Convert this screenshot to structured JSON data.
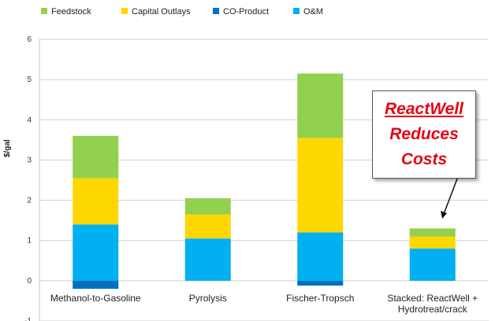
{
  "chart_data": {
    "type": "bar",
    "stacked": true,
    "title": "",
    "xlabel": "",
    "ylabel": "$/gal",
    "ylim": [
      -1,
      6
    ],
    "yticks": [
      -1,
      0,
      1,
      2,
      3,
      4,
      5,
      6
    ],
    "grid": true,
    "legend_position": "top",
    "categories": [
      "Methanol-to-Gasoline",
      "Pyrolysis",
      "Fischer-Tropsch",
      "Stacked: ReactWell + Hydrotreat/crack"
    ],
    "series": [
      {
        "name": "O&M",
        "color": "#00b0f0",
        "values": [
          1.4,
          1.05,
          1.2,
          0.8
        ]
      },
      {
        "name": "CO-Product",
        "color": "#0070c0",
        "values": [
          -0.2,
          0,
          -0.12,
          0
        ]
      },
      {
        "name": "Capital Outlays",
        "color": "#ffd700",
        "values": [
          1.15,
          0.6,
          2.35,
          0.3
        ]
      },
      {
        "name": "Feedstock",
        "color": "#92d050",
        "values": [
          1.05,
          0.4,
          1.6,
          0.2
        ]
      }
    ],
    "legend_order": [
      "Feedstock",
      "Capital Outlays",
      "CO-Product",
      "O&M"
    ],
    "annotation": {
      "line1": "ReactWell",
      "line2": "Reduces",
      "line3": "Costs",
      "color": "#e30613"
    }
  }
}
